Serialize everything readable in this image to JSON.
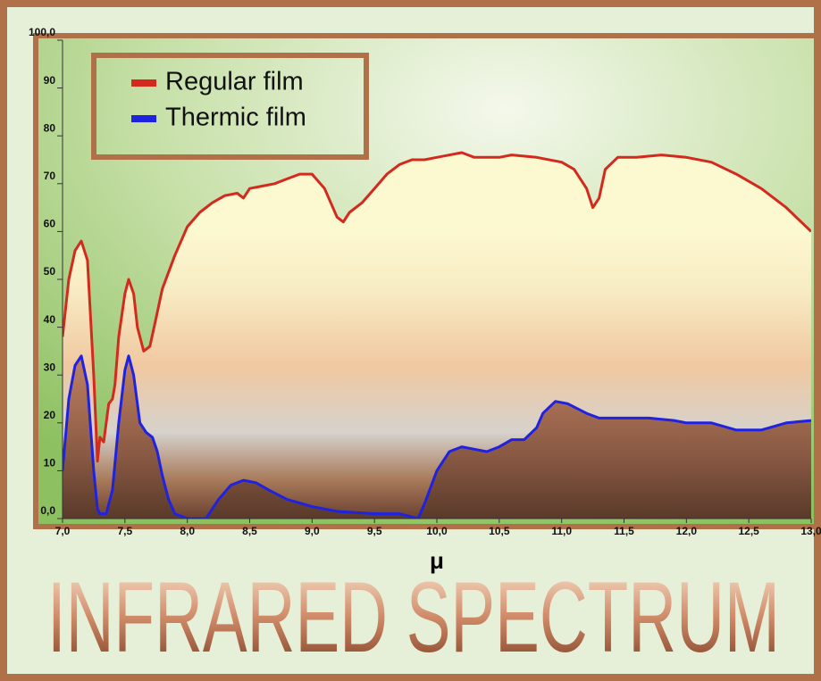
{
  "chart_data": {
    "type": "line",
    "title": "INFRARED SPECTRUM",
    "x_label": "μ",
    "series": [
      {
        "name": "Regular film",
        "color": "#d42a1e",
        "x": [
          7.0,
          7.05,
          7.1,
          7.15,
          7.2,
          7.25,
          7.28,
          7.3,
          7.33,
          7.37,
          7.4,
          7.42,
          7.45,
          7.5,
          7.53,
          7.57,
          7.6,
          7.65,
          7.7,
          7.75,
          7.8,
          7.9,
          8.0,
          8.1,
          8.2,
          8.3,
          8.4,
          8.45,
          8.5,
          8.6,
          8.7,
          8.8,
          8.9,
          9.0,
          9.1,
          9.2,
          9.25,
          9.3,
          9.4,
          9.5,
          9.6,
          9.7,
          9.8,
          9.9,
          10.0,
          10.2,
          10.3,
          10.5,
          10.6,
          10.8,
          11.0,
          11.1,
          11.2,
          11.25,
          11.3,
          11.35,
          11.45,
          11.6,
          11.8,
          12.0,
          12.2,
          12.4,
          12.6,
          12.8,
          13.0
        ],
        "values": [
          38,
          50,
          56,
          58,
          54,
          30,
          12,
          17,
          16,
          24,
          25,
          28,
          38,
          47,
          50,
          47,
          40,
          35,
          36,
          42,
          48,
          55,
          61,
          64,
          66,
          67.5,
          68,
          67,
          69,
          69.5,
          70,
          71,
          72,
          72,
          69,
          63,
          62,
          64,
          66,
          69,
          72,
          74,
          75,
          75,
          75.5,
          76.5,
          75.5,
          75.5,
          76,
          75.5,
          74.5,
          73,
          69,
          65,
          67,
          73,
          75.5,
          75.5,
          76,
          75.5,
          74.5,
          72,
          69,
          65,
          60
        ]
      },
      {
        "name": "Thermic film",
        "color": "#1f22e0",
        "x": [
          7.0,
          7.05,
          7.1,
          7.15,
          7.2,
          7.25,
          7.28,
          7.3,
          7.35,
          7.4,
          7.45,
          7.5,
          7.53,
          7.57,
          7.62,
          7.67,
          7.72,
          7.76,
          7.8,
          7.85,
          7.9,
          8.0,
          8.15,
          8.25,
          8.35,
          8.45,
          8.55,
          8.65,
          8.8,
          9.0,
          9.2,
          9.5,
          9.7,
          9.85,
          9.9,
          10.0,
          10.1,
          10.2,
          10.3,
          10.4,
          10.5,
          10.6,
          10.7,
          10.8,
          10.85,
          10.95,
          11.05,
          11.2,
          11.3,
          11.5,
          11.7,
          11.9,
          12.0,
          12.2,
          12.4,
          12.6,
          12.8,
          13.0
        ],
        "values": [
          10,
          25,
          32,
          34,
          28,
          10,
          2,
          1,
          1,
          6,
          20,
          31,
          34,
          30,
          20,
          18,
          17,
          14,
          9,
          4,
          1,
          0,
          0,
          4,
          7,
          8,
          7.5,
          6,
          4,
          2.5,
          1.5,
          1,
          1,
          0,
          3,
          10,
          14,
          15,
          14.5,
          14,
          15,
          16.5,
          16.5,
          19,
          22,
          24.5,
          24,
          22,
          21,
          21,
          21,
          20.5,
          20,
          20,
          18.5,
          18.5,
          20,
          20.5
        ]
      }
    ],
    "xlim": [
      7.0,
      13.0
    ],
    "xticks": [
      {
        "value": 7.0,
        "label": "7,0"
      },
      {
        "value": 7.5,
        "label": "7,5"
      },
      {
        "value": 8.0,
        "label": "8,0"
      },
      {
        "value": 8.5,
        "label": "8,5"
      },
      {
        "value": 9.0,
        "label": "9,0"
      },
      {
        "value": 9.5,
        "label": "9,5"
      },
      {
        "value": 10.0,
        "label": "10,0"
      },
      {
        "value": 10.5,
        "label": "10,5"
      },
      {
        "value": 11.0,
        "label": "11,0"
      },
      {
        "value": 11.5,
        "label": "11,5"
      },
      {
        "value": 12.0,
        "label": "12,0"
      },
      {
        "value": 12.5,
        "label": "12,5"
      },
      {
        "value": 13.0,
        "label": "13,0"
      }
    ],
    "ylim": [
      0,
      100
    ],
    "yticks": [
      {
        "value": 0,
        "label": "0,0"
      },
      10,
      20,
      30,
      40,
      50,
      60,
      70,
      80,
      90,
      {
        "value": 100,
        "label": "100,0"
      }
    ],
    "legend": "top-left"
  }
}
